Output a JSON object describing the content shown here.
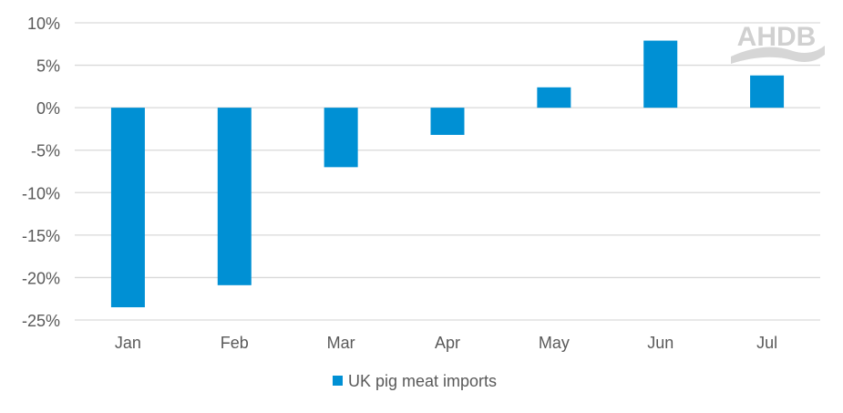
{
  "chart_data": {
    "type": "bar",
    "categories": [
      "Jan",
      "Feb",
      "Mar",
      "Apr",
      "May",
      "Jun",
      "Jul"
    ],
    "series": [
      {
        "name": "UK pig meat imports",
        "values": [
          -23.5,
          -20.9,
          -7.0,
          -3.2,
          2.4,
          7.9,
          3.8
        ],
        "color": "#0090d4"
      }
    ],
    "yticks": [
      "10%",
      "5%",
      "0%",
      "-5%",
      "-10%",
      "-15%",
      "-20%",
      "-25%"
    ],
    "ytick_values": [
      10,
      5,
      0,
      -5,
      -10,
      -15,
      -20,
      -25
    ],
    "ylim": [
      -25,
      10
    ],
    "grid": true,
    "legend": "bottom",
    "xlabel": "",
    "ylabel": ""
  },
  "logo": {
    "text": "AHDB"
  }
}
